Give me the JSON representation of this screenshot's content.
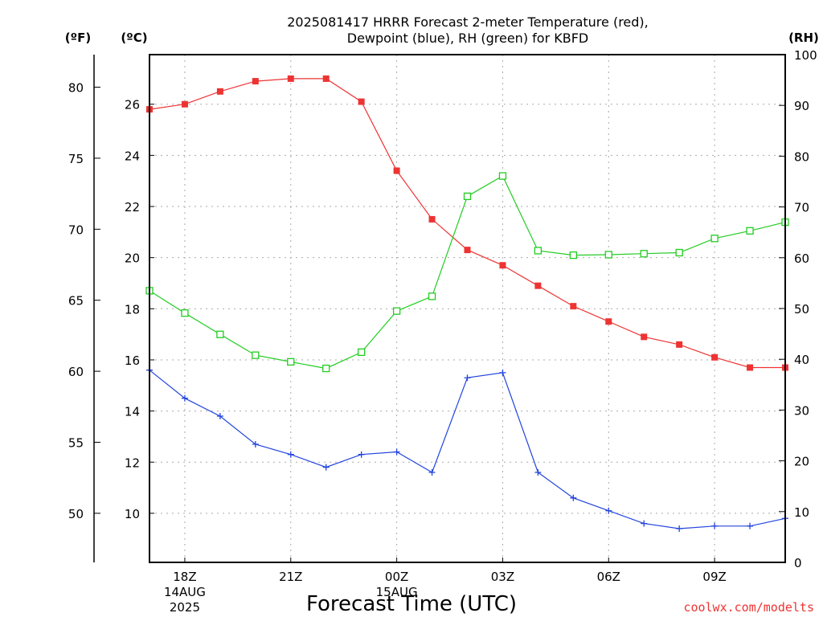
{
  "chart_data": {
    "type": "line",
    "title_lines": [
      "2025081417 HRRR Forecast 2-meter Temperature (red),",
      "Dewpoint (blue), RH (green) for KBFD"
    ],
    "xlabel": "Forecast Time (UTC)",
    "credit": "coolwx.com/modelts",
    "unit_labels": {
      "fahrenheit": "(ºF)",
      "celsius": "(ºC)",
      "rh": "(RH)"
    },
    "x_hours": [
      17,
      18,
      19,
      20,
      21,
      22,
      23,
      24,
      25,
      26,
      27,
      28,
      29,
      30,
      31,
      32,
      33,
      34,
      35
    ],
    "xlim": [
      17,
      35
    ],
    "x_ticks": [
      {
        "x": 18,
        "label": "18Z",
        "sub": [
          "14AUG",
          "2025"
        ]
      },
      {
        "x": 21,
        "label": "21Z",
        "sub": []
      },
      {
        "x": 24,
        "label": "00Z",
        "sub": [
          "15AUG"
        ]
      },
      {
        "x": 27,
        "label": "03Z",
        "sub": []
      },
      {
        "x": 30,
        "label": "06Z",
        "sub": []
      },
      {
        "x": 33,
        "label": "09Z",
        "sub": []
      }
    ],
    "celsius_axis": {
      "range": [
        8.08,
        27.94
      ],
      "ticks": [
        10,
        12,
        14,
        16,
        18,
        20,
        22,
        24,
        26
      ]
    },
    "fahrenheit_axis": {
      "ticks": [
        50,
        55,
        60,
        65,
        70,
        75,
        80
      ]
    },
    "rh_axis": {
      "range": [
        0,
        100
      ],
      "ticks": [
        0,
        10,
        20,
        30,
        40,
        50,
        60,
        70,
        80,
        90,
        100
      ]
    },
    "grid": true,
    "series": [
      {
        "name": "Temperature",
        "color": "#ee3333",
        "marker": "filled-square",
        "axis": "celsius",
        "values": [
          25.8,
          26.0,
          26.5,
          26.9,
          27.0,
          27.0,
          26.1,
          23.4,
          21.5,
          20.3,
          19.7,
          18.9,
          18.1,
          17.5,
          16.9,
          16.6,
          16.1,
          15.7,
          15.7
        ]
      },
      {
        "name": "Dewpoint",
        "color": "#2244dd",
        "marker": "plus",
        "axis": "celsius",
        "values": [
          15.6,
          14.5,
          13.8,
          12.7,
          12.3,
          11.8,
          12.3,
          12.4,
          11.6,
          15.3,
          15.5,
          11.6,
          10.6,
          10.1,
          9.6,
          9.4,
          9.5,
          9.5,
          9.8
        ]
      },
      {
        "name": "RH",
        "color": "#22cc22",
        "marker": "open-square",
        "axis": "rh",
        "values": [
          53.5,
          49.1,
          44.9,
          40.8,
          39.5,
          38.2,
          41.4,
          49.5,
          52.4,
          72.1,
          76.1,
          61.4,
          60.5,
          60.6,
          60.8,
          61.0,
          63.8,
          65.3,
          67.0
        ]
      }
    ]
  }
}
